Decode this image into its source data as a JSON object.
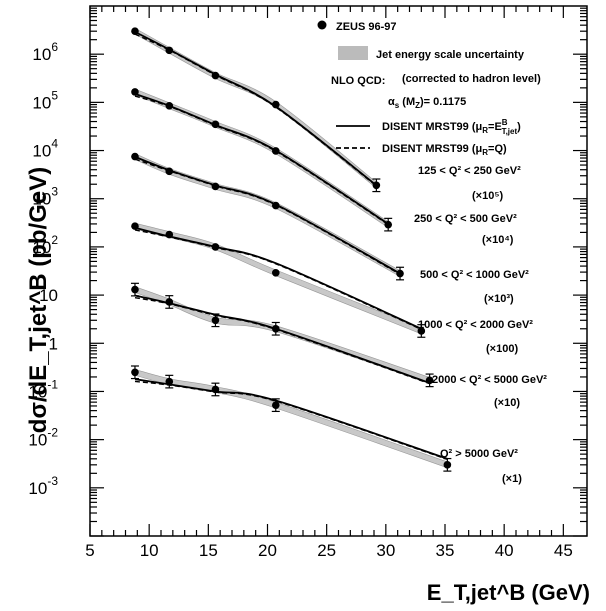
{
  "chart_data": {
    "type": "scatter",
    "title": "",
    "xlabel": "E_T,jet^B (GeV)",
    "ylabel": "dσ/dE_T,jet^B (pb/GeV)",
    "xlim": [
      5,
      47
    ],
    "ylim": [
      0.0001,
      10000000.0
    ],
    "yscale": "log",
    "x_ticks": [
      "5",
      "10",
      "15",
      "20",
      "25",
      "30",
      "35",
      "40",
      "45"
    ],
    "y_ticks": [
      {
        "base": "10",
        "exp": "6",
        "value": 1000000
      },
      {
        "base": "10",
        "exp": "5",
        "value": 100000
      },
      {
        "base": "10",
        "exp": "4",
        "value": 10000
      },
      {
        "base": "10",
        "exp": "3",
        "value": 1000
      },
      {
        "base": "10",
        "exp": "2",
        "value": 100
      },
      {
        "base": "10",
        "exp": "",
        "value": 10
      },
      {
        "base": "1",
        "exp": "",
        "value": 1
      },
      {
        "base": "10",
        "exp": "-1",
        "value": 0.1
      },
      {
        "base": "10",
        "exp": "-2",
        "value": 0.01
      },
      {
        "base": "10",
        "exp": "-3",
        "value": 0.001
      }
    ],
    "legend": {
      "data_label": "ZEUS 96-97",
      "band_label": "Jet energy scale uncertainty",
      "nlo_label": "NLO QCD:",
      "nlo_note": "(corrected to hadron level)",
      "alpha_label": "α",
      "alpha_sub": "s",
      "alpha_rest": " (M",
      "alpha_sub2": "Z",
      "alpha_value": ")= 0.1175",
      "solid_label": "DISENT MRST99 (μ",
      "solid_sub": "R",
      "solid_label2": "=E",
      "solid_sup": "B",
      "solid_sub2": "T,jet",
      "solid_end": ")",
      "dashed_label": "DISENT MRST99 (μ",
      "dashed_sub": "R",
      "dashed_end": "=Q)"
    },
    "series": [
      {
        "name": "125 < Q² < 250 GeV²",
        "scale": "(×10⁵)",
        "x": [
          8.8,
          11.7,
          15.6,
          20.7,
          29.2
        ],
        "y": [
          3000000,
          1200000,
          360000,
          90000,
          1900
        ],
        "theory_solid": [
          2900000,
          1250000,
          380000,
          82000,
          1900
        ]
      },
      {
        "name": "250 < Q² < 500 GeV²",
        "scale": "(×10⁴)",
        "x": [
          8.8,
          11.7,
          15.6,
          20.7,
          30.2
        ],
        "y": [
          165000,
          85000,
          35000,
          9800,
          290
        ],
        "theory_solid": [
          150000,
          85000,
          34000,
          10000,
          300
        ]
      },
      {
        "name": "500 < Q² < 1000 GeV²",
        "scale": "(×10³)",
        "x": [
          8.8,
          11.7,
          15.6,
          20.7,
          31.2
        ],
        "y": [
          7500,
          3700,
          1800,
          720,
          28
        ],
        "theory_solid": [
          7400,
          3900,
          1900,
          760,
          28
        ]
      },
      {
        "name": "1000 < Q² < 2000 GeV²",
        "scale": "(×100)",
        "x": [
          8.8,
          11.7,
          15.6,
          20.7,
          33.0
        ],
        "y": [
          270,
          180,
          100,
          29,
          1.8
        ],
        "theory_solid": [
          250,
          165,
          100,
          46,
          2.0
        ]
      },
      {
        "name": "2000 < Q² < 5000 GeV²",
        "scale": "(×10)",
        "x": [
          8.8,
          11.7,
          15.6,
          20.7,
          33.7
        ],
        "y": [
          13,
          7.2,
          3.0,
          2.0,
          0.17
        ],
        "theory_solid": [
          9.8,
          6.8,
          3.9,
          2.0,
          0.15
        ]
      },
      {
        "name": "Q² > 5000 GeV²",
        "scale": "(×1)",
        "x": [
          8.8,
          11.7,
          15.6,
          20.7,
          35.2
        ],
        "y": [
          0.25,
          0.16,
          0.11,
          0.052,
          0.003
        ],
        "theory_solid": [
          0.18,
          0.14,
          0.1,
          0.065,
          0.004
        ]
      }
    ]
  }
}
